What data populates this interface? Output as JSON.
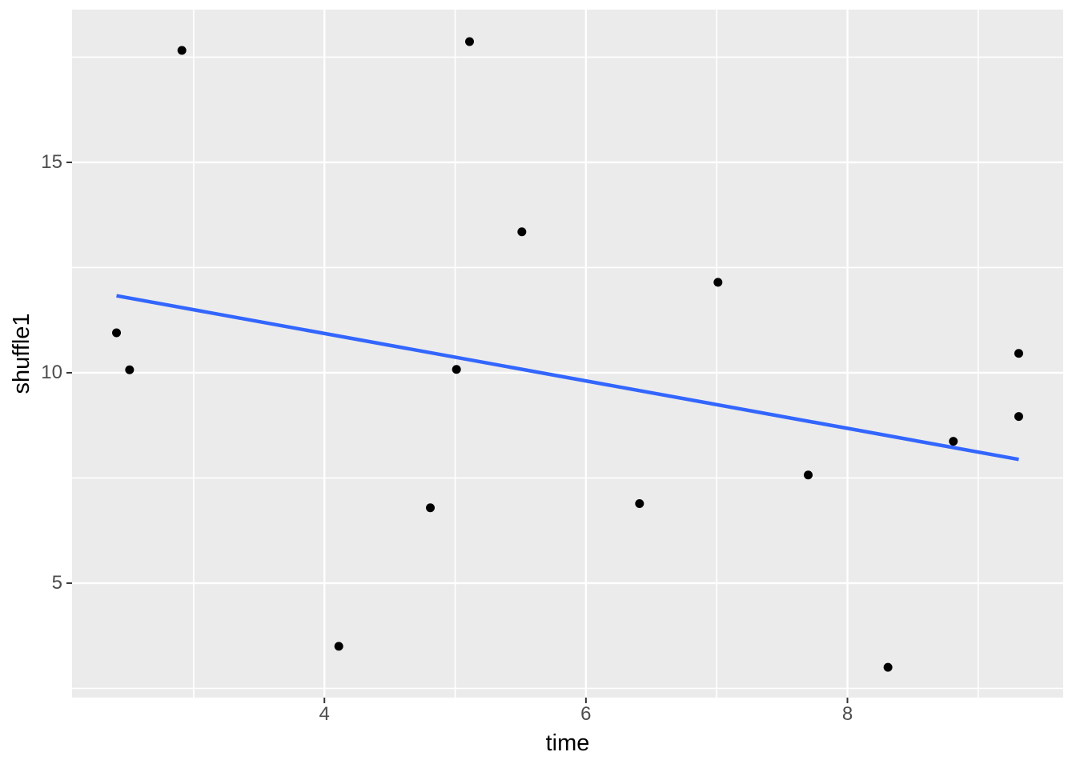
{
  "chart_data": {
    "type": "scatter",
    "title": "",
    "xlabel": "time",
    "ylabel": "shuffle1",
    "xlim": [
      2.07,
      9.65
    ],
    "ylim": [
      2.28,
      18.63
    ],
    "x_major_ticks": [
      4,
      6,
      8
    ],
    "x_minor_ticks": [
      3,
      5,
      7,
      9
    ],
    "y_major_ticks": [
      5,
      10,
      15
    ],
    "y_minor_ticks": [
      2.5,
      7.5,
      12.5,
      17.5
    ],
    "grid": "white major and minor gridlines on gray panel",
    "legend_position": "none",
    "points": [
      {
        "x": 2.91,
        "y": 17.66
      },
      {
        "x": 5.11,
        "y": 17.87
      },
      {
        "x": 5.51,
        "y": 13.35
      },
      {
        "x": 7.01,
        "y": 12.15
      },
      {
        "x": 2.41,
        "y": 10.95
      },
      {
        "x": 2.51,
        "y": 10.07
      },
      {
        "x": 5.01,
        "y": 10.08
      },
      {
        "x": 9.31,
        "y": 10.46
      },
      {
        "x": 9.31,
        "y": 8.96
      },
      {
        "x": 8.81,
        "y": 8.37
      },
      {
        "x": 7.7,
        "y": 7.57
      },
      {
        "x": 4.81,
        "y": 6.79
      },
      {
        "x": 6.41,
        "y": 6.89
      },
      {
        "x": 4.11,
        "y": 3.5
      },
      {
        "x": 8.31,
        "y": 3.0
      }
    ],
    "regression_line": {
      "x_start": 2.41,
      "y_start": 11.83,
      "x_end": 9.31,
      "y_end": 7.94
    }
  },
  "style": {
    "figure_background": "#FFFFFF",
    "panel_background": "#EBEBEB",
    "grid_color": "#FFFFFF",
    "point_color": "#000000",
    "smooth_line_color": "#3366FF",
    "tick_label_color": "#4D4D4D",
    "axis_title_color": "#000000",
    "tick_mark_color": "#333333"
  }
}
